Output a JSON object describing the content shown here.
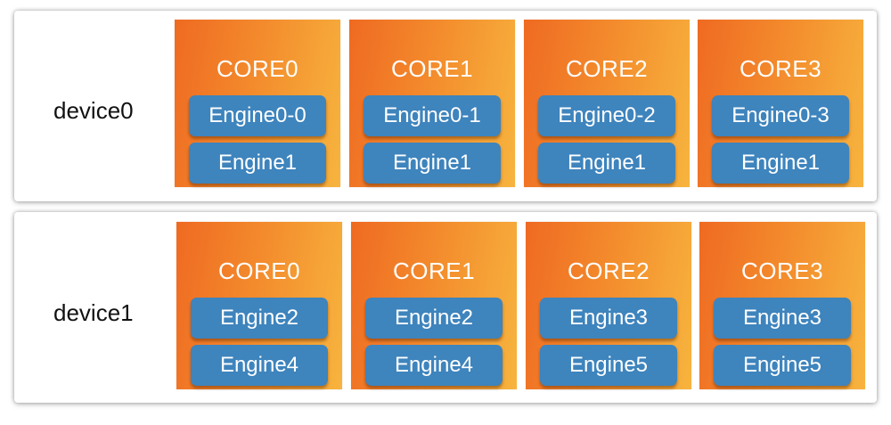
{
  "devices": [
    {
      "label": "device0",
      "cores": [
        {
          "title": "CORE0",
          "engines": [
            "Engine0-0",
            "Engine1"
          ]
        },
        {
          "title": "CORE1",
          "engines": [
            "Engine0-1",
            "Engine1"
          ]
        },
        {
          "title": "CORE2",
          "engines": [
            "Engine0-2",
            "Engine1"
          ]
        },
        {
          "title": "CORE3",
          "engines": [
            "Engine0-3",
            "Engine1"
          ]
        }
      ]
    },
    {
      "label": "device1",
      "cores": [
        {
          "title": "CORE0",
          "engines": [
            "Engine2",
            "Engine4"
          ]
        },
        {
          "title": "CORE1",
          "engines": [
            "Engine2",
            "Engine4"
          ]
        },
        {
          "title": "CORE2",
          "engines": [
            "Engine3",
            "Engine5"
          ]
        },
        {
          "title": "CORE3",
          "engines": [
            "Engine3",
            "Engine5"
          ]
        }
      ]
    }
  ],
  "colors": {
    "core_gradient_start": "#ef6a22",
    "core_gradient_end": "#f7b43e",
    "engine_fill": "#3e84bd",
    "text_light": "#ffffff",
    "text_dark": "#111111"
  }
}
